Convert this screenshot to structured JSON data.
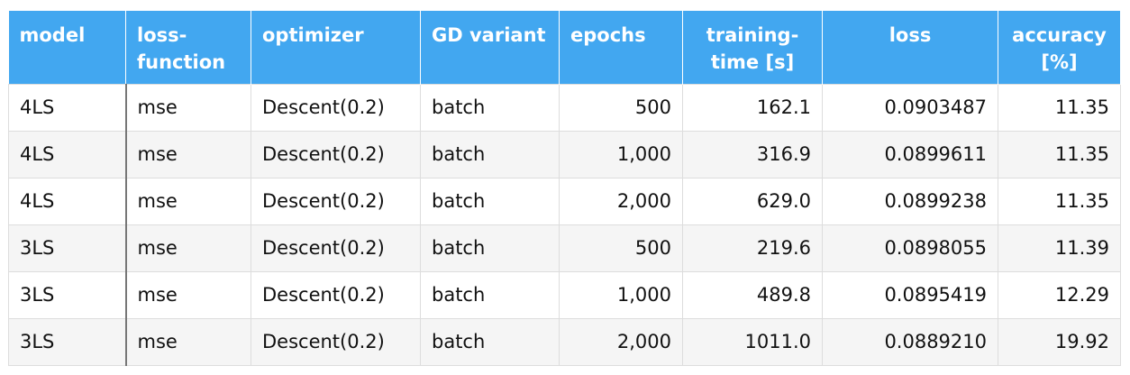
{
  "table": {
    "header": [
      "model",
      "loss-function",
      "optimizer",
      "GD variant",
      "epochs",
      "training-time [s]",
      "loss",
      "accuracy [%]"
    ],
    "rows": [
      [
        "4LS",
        "mse",
        "Descent(0.2)",
        "batch",
        "500",
        "162.1",
        "0.0903487",
        "11.35"
      ],
      [
        "4LS",
        "mse",
        "Descent(0.2)",
        "batch",
        "1,000",
        "316.9",
        "0.0899611",
        "11.35"
      ],
      [
        "4LS",
        "mse",
        "Descent(0.2)",
        "batch",
        "2,000",
        "629.0",
        "0.0899238",
        "11.35"
      ],
      [
        "3LS",
        "mse",
        "Descent(0.2)",
        "batch",
        "500",
        "219.6",
        "0.0898055",
        "11.39"
      ],
      [
        "3LS",
        "mse",
        "Descent(0.2)",
        "batch",
        "1,000",
        "489.8",
        "0.0895419",
        "12.29"
      ],
      [
        "3LS",
        "mse",
        "Descent(0.2)",
        "batch",
        "2,000",
        "1011.0",
        "0.0889210",
        "19.92"
      ]
    ]
  }
}
